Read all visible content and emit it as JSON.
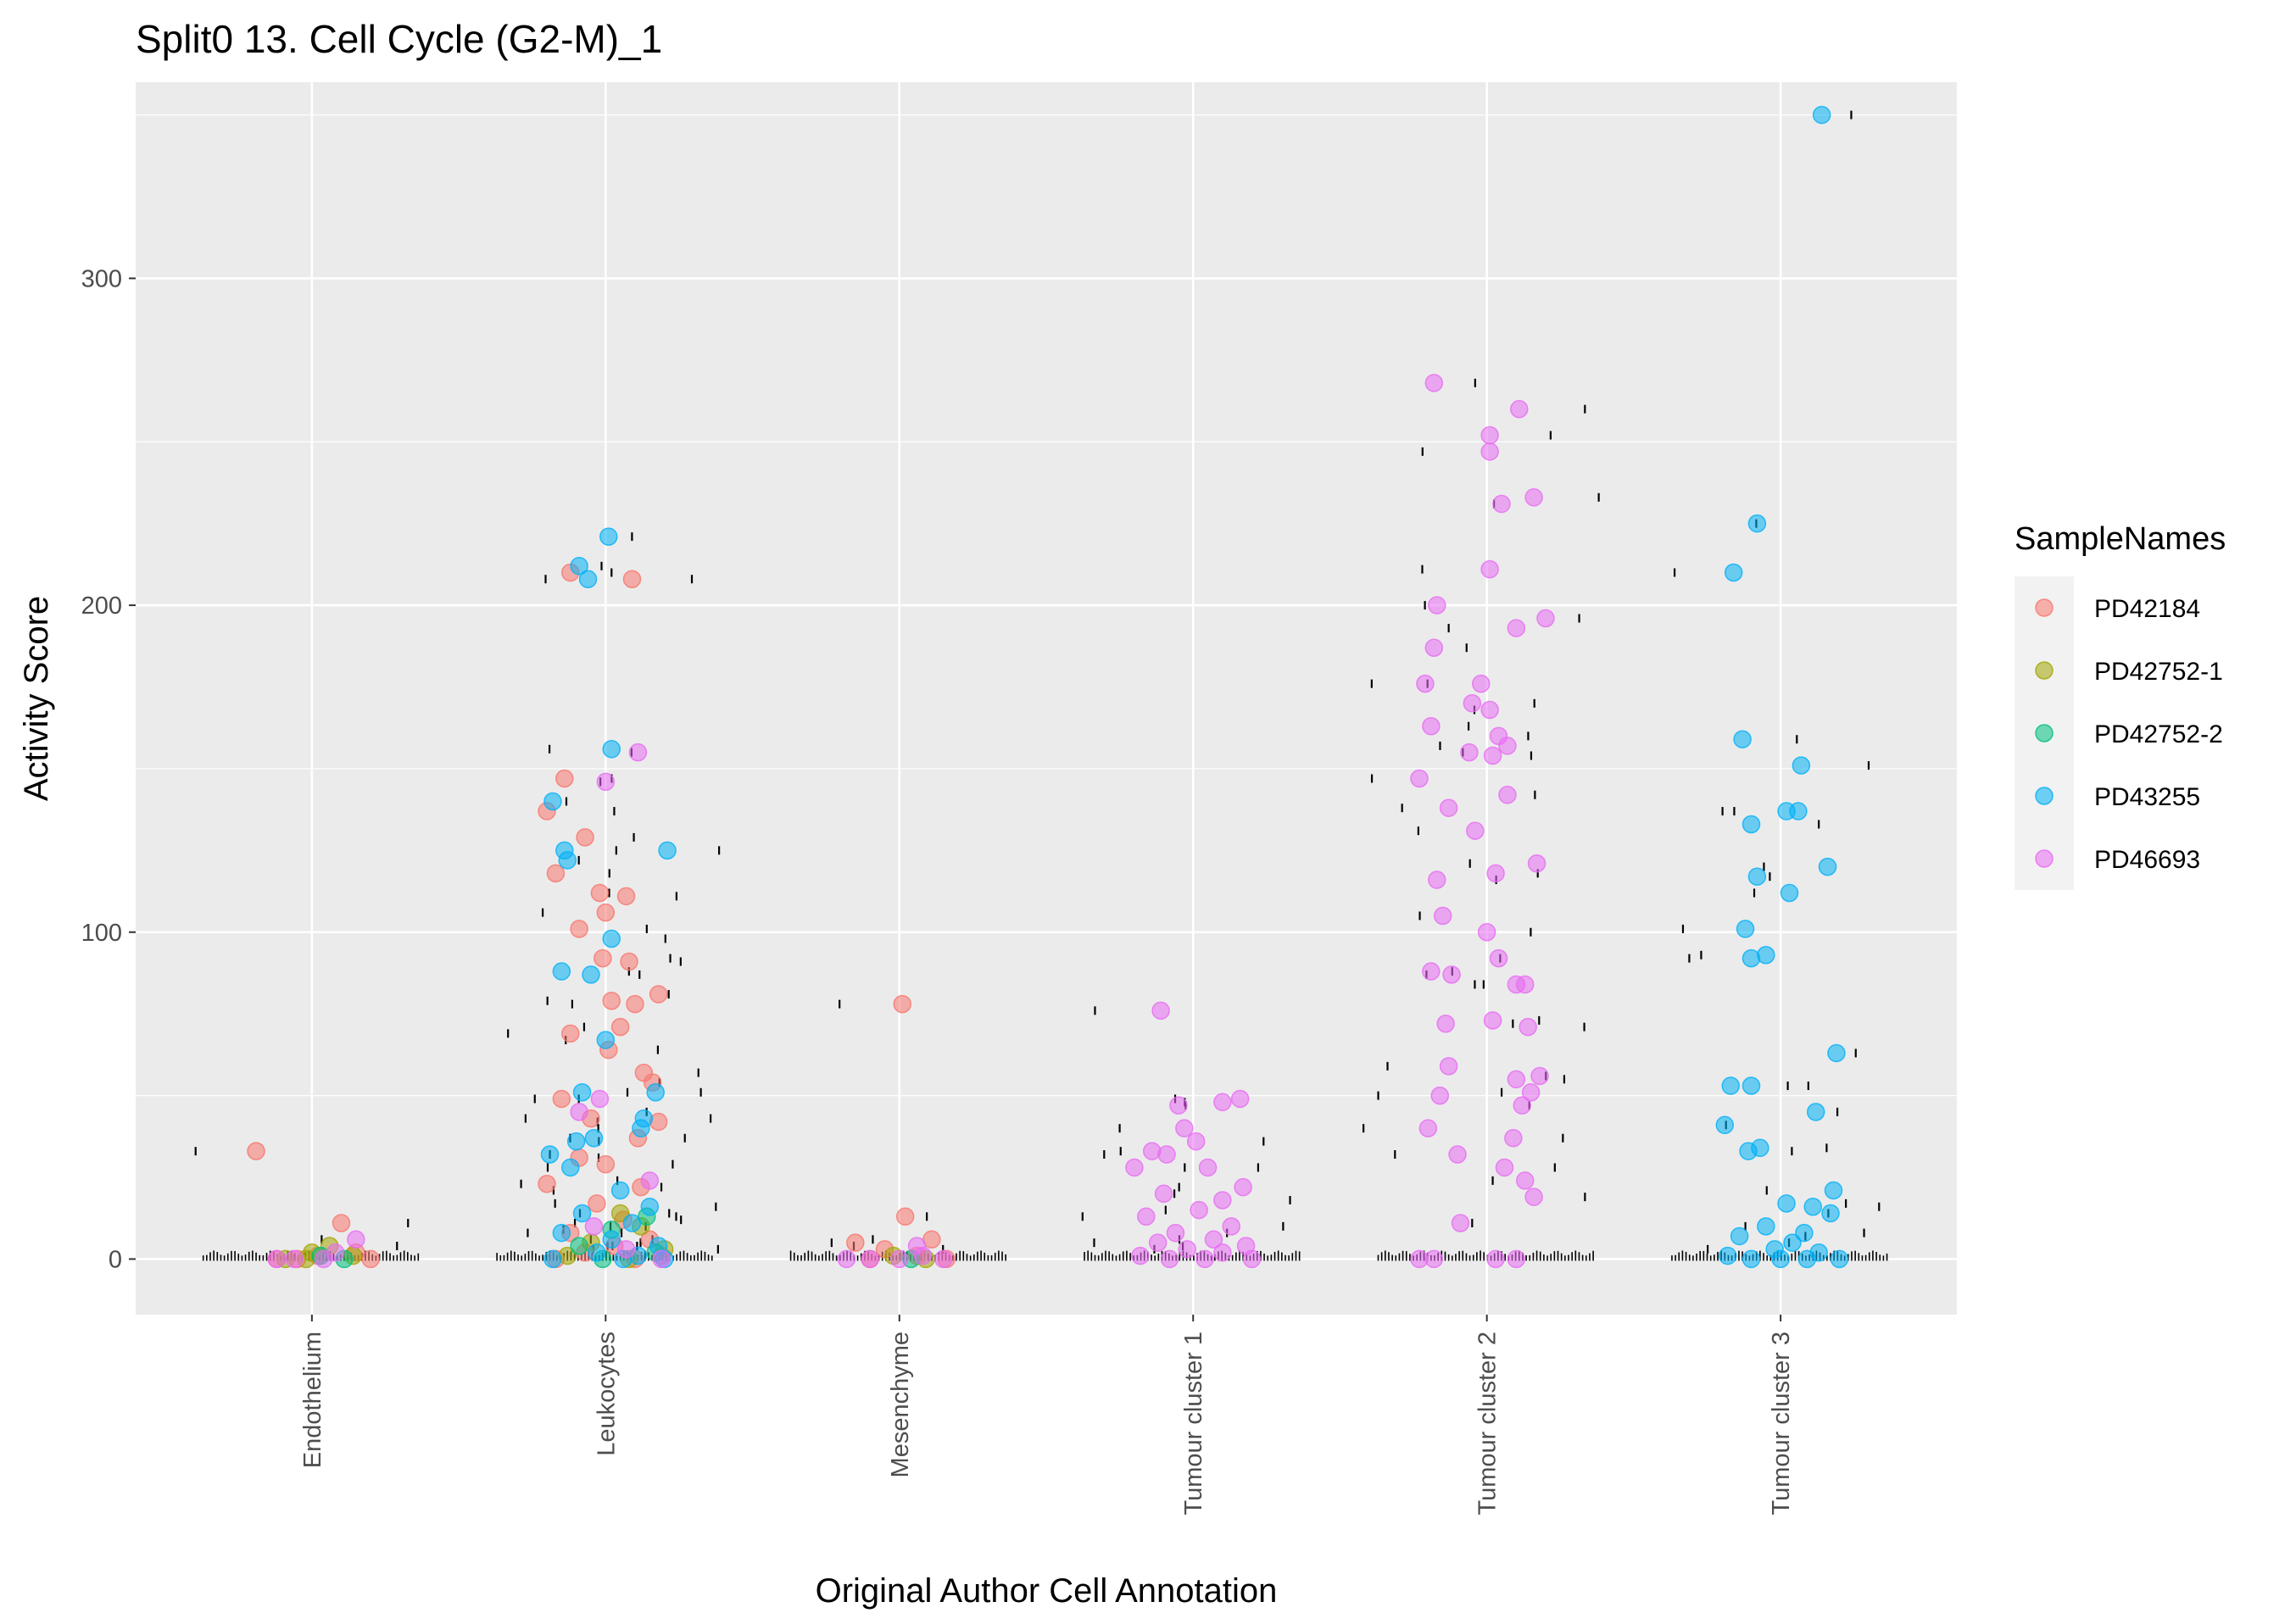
{
  "chart_data": {
    "type": "scatter",
    "title": "Split0 13. Cell Cycle (G2-M)_1",
    "xlabel": "Original Author Cell Annotation",
    "ylabel": "Activity Score",
    "categories": [
      "Endothelium",
      "Leukocytes",
      "Mesenchyme",
      "Tumour cluster 1",
      "Tumour cluster 2",
      "Tumour cluster 3"
    ],
    "y_ticks": [
      0,
      100,
      200,
      300
    ],
    "ylim": [
      -17,
      360
    ],
    "grid": true,
    "legend": {
      "title": "SampleNames",
      "placement": "right",
      "entries": [
        "PD42184",
        "PD42752-1",
        "PD42752-2",
        "PD43255",
        "PD46693"
      ]
    },
    "colors": {
      "PD42184": "#F8766D",
      "PD42752-1": "#A3A500",
      "PD42752-2": "#00BF7D",
      "PD43255": "#00B0F6",
      "PD46693": "#E76BF3",
      "panel_bg": "#EBEBEB",
      "grid": "#FFFFFF",
      "rug": "#000000"
    },
    "series": [
      {
        "name": "PD42184",
        "points": [
          [
            0,
            -0.19,
            33
          ],
          [
            0,
            -0.05,
            0
          ],
          [
            0,
            0.02,
            1
          ],
          [
            0,
            0.1,
            11
          ],
          [
            0,
            0.15,
            2
          ],
          [
            0,
            0.2,
            0
          ],
          [
            0,
            -0.12,
            0
          ],
          [
            1,
            -0.12,
            210
          ],
          [
            1,
            0.09,
            208
          ],
          [
            1,
            -0.2,
            137
          ],
          [
            1,
            -0.14,
            147
          ],
          [
            1,
            -0.07,
            129
          ],
          [
            1,
            -0.17,
            118
          ],
          [
            1,
            -0.02,
            112
          ],
          [
            1,
            0.07,
            111
          ],
          [
            1,
            0.0,
            106
          ],
          [
            1,
            -0.09,
            101
          ],
          [
            1,
            -0.01,
            92
          ],
          [
            1,
            0.08,
            91
          ],
          [
            1,
            0.02,
            79
          ],
          [
            1,
            0.1,
            78
          ],
          [
            1,
            0.18,
            81
          ],
          [
            1,
            -0.12,
            69
          ],
          [
            1,
            0.01,
            64
          ],
          [
            1,
            0.05,
            71
          ],
          [
            1,
            0.13,
            57
          ],
          [
            1,
            0.16,
            54
          ],
          [
            1,
            -0.15,
            49
          ],
          [
            1,
            -0.05,
            43
          ],
          [
            1,
            0.11,
            37
          ],
          [
            1,
            0.18,
            42
          ],
          [
            1,
            -0.09,
            31
          ],
          [
            1,
            0.0,
            29
          ],
          [
            1,
            0.12,
            22
          ],
          [
            1,
            -0.2,
            23
          ],
          [
            1,
            -0.03,
            17
          ],
          [
            1,
            0.06,
            12
          ],
          [
            1,
            -0.12,
            8
          ],
          [
            1,
            0.15,
            6
          ],
          [
            1,
            0.03,
            4
          ],
          [
            1,
            -0.07,
            2
          ],
          [
            1,
            0.19,
            1
          ],
          [
            1,
            0.1,
            0
          ],
          [
            1,
            -0.17,
            0
          ],
          [
            2,
            0.01,
            78
          ],
          [
            2,
            0.02,
            13
          ],
          [
            2,
            -0.15,
            5
          ],
          [
            2,
            0.11,
            6
          ],
          [
            2,
            -0.05,
            3
          ],
          [
            2,
            0.06,
            1
          ],
          [
            2,
            0.16,
            0
          ],
          [
            2,
            -0.1,
            0
          ]
        ]
      },
      {
        "name": "PD42752-1",
        "points": [
          [
            0,
            -0.09,
            0
          ],
          [
            0,
            0.0,
            2
          ],
          [
            0,
            0.06,
            4
          ],
          [
            0,
            0.14,
            1
          ],
          [
            0,
            -0.02,
            0
          ],
          [
            1,
            0.05,
            14
          ],
          [
            1,
            0.12,
            10
          ],
          [
            1,
            -0.05,
            5
          ],
          [
            1,
            0.2,
            3
          ],
          [
            1,
            -0.13,
            1
          ],
          [
            1,
            0.08,
            0
          ],
          [
            2,
            -0.02,
            1
          ],
          [
            2,
            0.09,
            0
          ]
        ]
      },
      {
        "name": "PD42752-2",
        "points": [
          [
            0,
            0.03,
            1
          ],
          [
            0,
            0.11,
            0
          ],
          [
            1,
            0.14,
            13
          ],
          [
            1,
            0.02,
            9
          ],
          [
            1,
            -0.09,
            4
          ],
          [
            1,
            0.17,
            2
          ],
          [
            1,
            -0.01,
            0
          ],
          [
            2,
            0.04,
            0
          ]
        ]
      },
      {
        "name": "PD43255",
        "points": [
          [
            1,
            0.01,
            221
          ],
          [
            1,
            -0.09,
            212
          ],
          [
            1,
            -0.06,
            208
          ],
          [
            1,
            -0.18,
            140
          ],
          [
            1,
            -0.14,
            125
          ],
          [
            1,
            -0.13,
            122
          ],
          [
            1,
            0.02,
            156
          ],
          [
            1,
            0.21,
            125
          ],
          [
            1,
            0.02,
            98
          ],
          [
            1,
            -0.15,
            88
          ],
          [
            1,
            -0.05,
            87
          ],
          [
            1,
            0.0,
            67
          ],
          [
            1,
            0.17,
            51
          ],
          [
            1,
            -0.08,
            51
          ],
          [
            1,
            0.13,
            43
          ],
          [
            1,
            0.12,
            40
          ],
          [
            1,
            -0.1,
            36
          ],
          [
            1,
            -0.19,
            32
          ],
          [
            1,
            -0.04,
            37
          ],
          [
            1,
            -0.12,
            28
          ],
          [
            1,
            0.05,
            21
          ],
          [
            1,
            0.15,
            16
          ],
          [
            1,
            -0.08,
            14
          ],
          [
            1,
            0.09,
            11
          ],
          [
            1,
            -0.15,
            8
          ],
          [
            1,
            0.02,
            6
          ],
          [
            1,
            0.18,
            4
          ],
          [
            1,
            -0.03,
            2
          ],
          [
            1,
            0.11,
            1
          ],
          [
            1,
            -0.18,
            0
          ],
          [
            1,
            0.06,
            0
          ],
          [
            1,
            0.2,
            0
          ],
          [
            5,
            0.14,
            350
          ],
          [
            5,
            -0.08,
            225
          ],
          [
            5,
            -0.16,
            210
          ],
          [
            5,
            -0.13,
            159
          ],
          [
            5,
            0.07,
            151
          ],
          [
            5,
            0.02,
            137
          ],
          [
            5,
            0.06,
            137
          ],
          [
            5,
            0.16,
            120
          ],
          [
            5,
            -0.1,
            133
          ],
          [
            5,
            -0.08,
            117
          ],
          [
            5,
            0.03,
            112
          ],
          [
            5,
            -0.12,
            101
          ],
          [
            5,
            -0.1,
            92
          ],
          [
            5,
            -0.05,
            93
          ],
          [
            5,
            0.19,
            63
          ],
          [
            5,
            -0.17,
            53
          ],
          [
            5,
            -0.1,
            53
          ],
          [
            5,
            0.12,
            45
          ],
          [
            5,
            -0.19,
            41
          ],
          [
            5,
            -0.07,
            34
          ],
          [
            5,
            -0.11,
            33
          ],
          [
            5,
            0.18,
            21
          ],
          [
            5,
            0.02,
            17
          ],
          [
            5,
            0.11,
            16
          ],
          [
            5,
            0.17,
            14
          ],
          [
            5,
            -0.05,
            10
          ],
          [
            5,
            0.08,
            8
          ],
          [
            5,
            -0.14,
            7
          ],
          [
            5,
            0.04,
            5
          ],
          [
            5,
            -0.02,
            3
          ],
          [
            5,
            0.13,
            2
          ],
          [
            5,
            -0.18,
            1
          ],
          [
            5,
            0.09,
            0
          ],
          [
            5,
            -0.1,
            0
          ],
          [
            5,
            0.2,
            0
          ],
          [
            5,
            0.0,
            0
          ]
        ]
      },
      {
        "name": "PD46693",
        "points": [
          [
            0,
            -0.12,
            0
          ],
          [
            0,
            -0.06,
            0
          ],
          [
            0,
            0.04,
            0
          ],
          [
            0,
            0.15,
            6
          ],
          [
            0,
            0.08,
            2
          ],
          [
            1,
            0.0,
            146
          ],
          [
            1,
            0.11,
            155
          ],
          [
            1,
            -0.02,
            49
          ],
          [
            1,
            -0.09,
            45
          ],
          [
            1,
            0.15,
            24
          ],
          [
            1,
            -0.04,
            10
          ],
          [
            1,
            0.07,
            3
          ],
          [
            1,
            0.19,
            0
          ],
          [
            2,
            -0.18,
            0
          ],
          [
            2,
            -0.1,
            0
          ],
          [
            2,
            0.0,
            0
          ],
          [
            2,
            0.08,
            1
          ],
          [
            2,
            0.15,
            0
          ],
          [
            2,
            0.06,
            4
          ],
          [
            3,
            -0.11,
            76
          ],
          [
            3,
            -0.05,
            47
          ],
          [
            3,
            -0.03,
            40
          ],
          [
            3,
            0.1,
            48
          ],
          [
            3,
            0.16,
            49
          ],
          [
            3,
            -0.14,
            33
          ],
          [
            3,
            -0.09,
            32
          ],
          [
            3,
            0.01,
            36
          ],
          [
            3,
            -0.2,
            28
          ],
          [
            3,
            0.05,
            28
          ],
          [
            3,
            0.17,
            22
          ],
          [
            3,
            -0.1,
            20
          ],
          [
            3,
            0.1,
            18
          ],
          [
            3,
            0.02,
            15
          ],
          [
            3,
            -0.16,
            13
          ],
          [
            3,
            0.13,
            10
          ],
          [
            3,
            -0.06,
            8
          ],
          [
            3,
            0.07,
            6
          ],
          [
            3,
            -0.12,
            5
          ],
          [
            3,
            0.18,
            4
          ],
          [
            3,
            -0.02,
            3
          ],
          [
            3,
            0.1,
            2
          ],
          [
            3,
            -0.18,
            1
          ],
          [
            3,
            0.04,
            0
          ],
          [
            3,
            0.2,
            0
          ],
          [
            3,
            -0.08,
            0
          ],
          [
            4,
            -0.18,
            268
          ],
          [
            4,
            0.11,
            260
          ],
          [
            4,
            0.01,
            252
          ],
          [
            4,
            0.01,
            247
          ],
          [
            4,
            0.16,
            233
          ],
          [
            4,
            0.05,
            231
          ],
          [
            4,
            0.01,
            211
          ],
          [
            4,
            -0.17,
            200
          ],
          [
            4,
            0.1,
            193
          ],
          [
            4,
            0.2,
            196
          ],
          [
            4,
            -0.18,
            187
          ],
          [
            4,
            -0.21,
            176
          ],
          [
            4,
            -0.02,
            176
          ],
          [
            4,
            -0.05,
            170
          ],
          [
            4,
            0.01,
            168
          ],
          [
            4,
            0.04,
            160
          ],
          [
            4,
            -0.19,
            163
          ],
          [
            4,
            -0.23,
            147
          ],
          [
            4,
            -0.06,
            155
          ],
          [
            4,
            0.07,
            157
          ],
          [
            4,
            0.02,
            154
          ],
          [
            4,
            -0.13,
            138
          ],
          [
            4,
            -0.17,
            116
          ],
          [
            4,
            -0.15,
            105
          ],
          [
            4,
            0.07,
            142
          ],
          [
            4,
            -0.04,
            131
          ],
          [
            4,
            0.03,
            118
          ],
          [
            4,
            0.17,
            121
          ],
          [
            4,
            -0.19,
            88
          ],
          [
            4,
            -0.12,
            87
          ],
          [
            4,
            0.0,
            100
          ],
          [
            4,
            0.04,
            92
          ],
          [
            4,
            0.1,
            84
          ],
          [
            4,
            0.13,
            84
          ],
          [
            4,
            0.02,
            73
          ],
          [
            4,
            -0.14,
            72
          ],
          [
            4,
            0.14,
            71
          ],
          [
            4,
            0.1,
            55
          ],
          [
            4,
            0.18,
            56
          ],
          [
            4,
            -0.13,
            59
          ],
          [
            4,
            -0.16,
            50
          ],
          [
            4,
            -0.2,
            40
          ],
          [
            4,
            0.15,
            51
          ],
          [
            4,
            0.12,
            47
          ],
          [
            4,
            -0.1,
            32
          ],
          [
            4,
            0.09,
            37
          ],
          [
            4,
            0.06,
            28
          ],
          [
            4,
            0.13,
            24
          ],
          [
            4,
            -0.09,
            11
          ],
          [
            4,
            0.16,
            19
          ],
          [
            4,
            0.03,
            0
          ],
          [
            4,
            -0.23,
            0
          ],
          [
            4,
            -0.18,
            0
          ],
          [
            4,
            0.1,
            0
          ]
        ]
      }
    ]
  }
}
